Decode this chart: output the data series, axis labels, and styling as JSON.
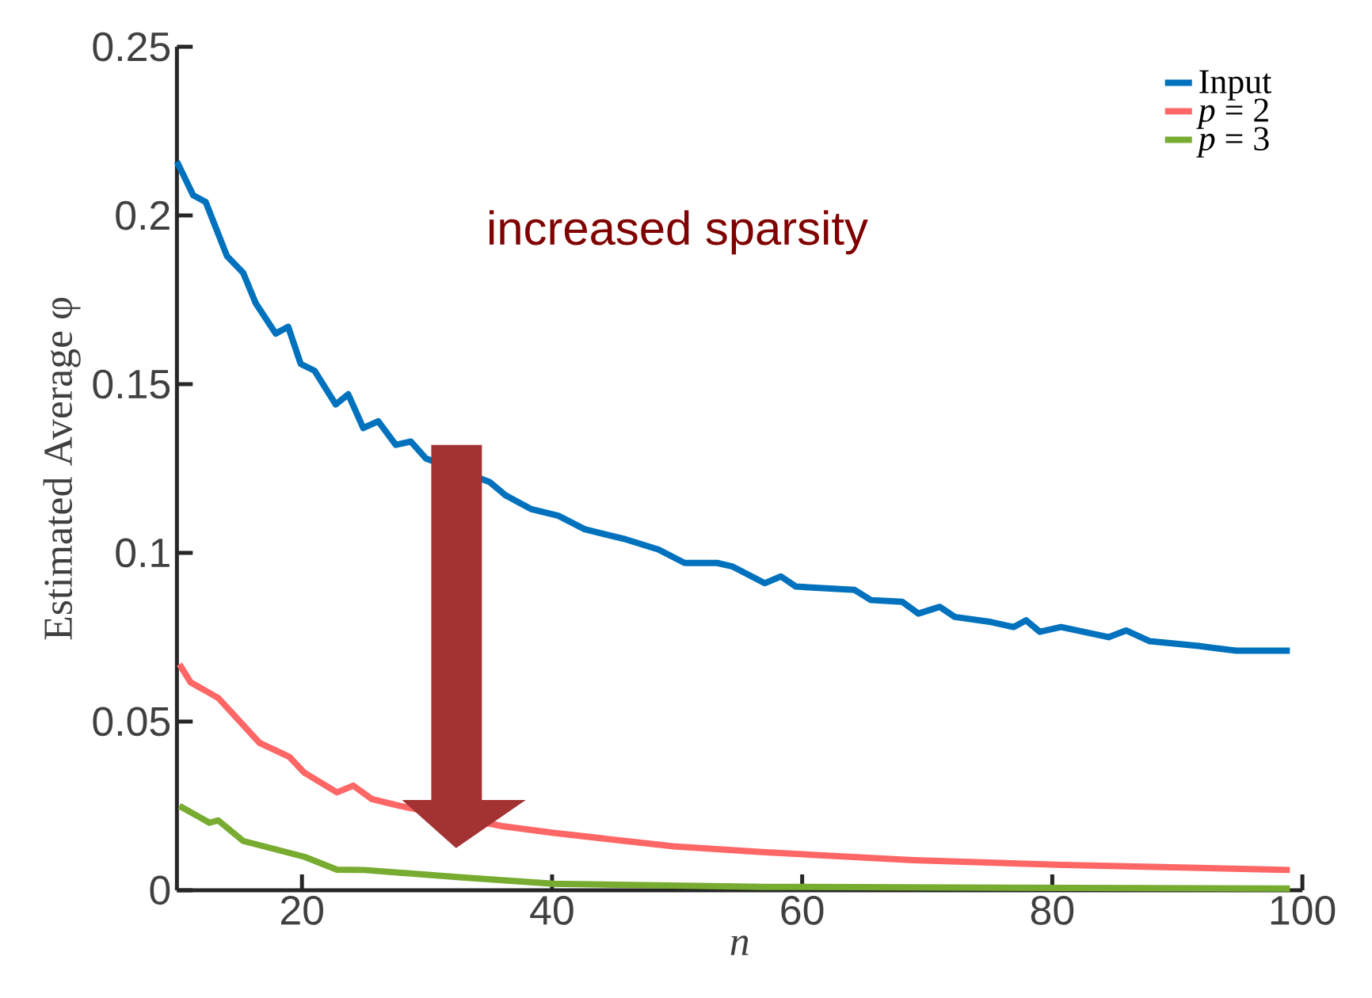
{
  "chart_data": {
    "type": "line",
    "xlabel": "n",
    "ylabel": "Estimated Average φ",
    "annotations": [
      "increased sparsity"
    ],
    "xlim": [
      10,
      100
    ],
    "ylim": [
      0,
      0.25
    ],
    "xticks": [
      20,
      40,
      60,
      80,
      100
    ],
    "yticks": [
      0,
      0.05,
      0.1,
      0.15,
      0.2,
      0.25
    ],
    "grid": false,
    "legend": "top right",
    "marker": "none",
    "line_style": "solid",
    "series": [
      {
        "name": "Input",
        "color": "#0072bd",
        "x": [
          10,
          11.3,
          12.3,
          14,
          15.3,
          16.3,
          17.9,
          18.9,
          19.9,
          21,
          22.7,
          23.7,
          24.9,
          26.1,
          27.5,
          28.7,
          29.9,
          35,
          36.3,
          38.3,
          40.5,
          42.6,
          45.9,
          48.5,
          50.6,
          53.2,
          54.4,
          57,
          58.3,
          59.5,
          64.2,
          65.5,
          68,
          69.3,
          71,
          72.2,
          75.1,
          76.9,
          77.9,
          79,
          80.7,
          84.5,
          85.9,
          87.8,
          91.7,
          94.7,
          97.4,
          99
        ],
        "values": [
          0.216,
          0.206,
          0.204,
          0.188,
          0.183,
          0.174,
          0.165,
          0.167,
          0.156,
          0.154,
          0.144,
          0.147,
          0.137,
          0.139,
          0.132,
          0.133,
          0.128,
          0.121,
          0.117,
          0.113,
          0.111,
          0.107,
          0.104,
          0.101,
          0.097,
          0.097,
          0.096,
          0.091,
          0.093,
          0.09,
          0.089,
          0.086,
          0.0855,
          0.082,
          0.084,
          0.081,
          0.0795,
          0.078,
          0.08,
          0.0766,
          0.078,
          0.075,
          0.077,
          0.0738,
          0.0724,
          0.071,
          0.071,
          0.071
        ]
      },
      {
        "name": "*p* = 2",
        "color": "#ff6666",
        "x": [
          10.2,
          11.1,
          13.3,
          16.6,
          19,
          20.2,
          22.8,
          24.1,
          25.6,
          27.8,
          36,
          40.1,
          49.7,
          56.8,
          68.9,
          80.9,
          97.9,
          99
        ],
        "values": [
          0.067,
          0.0616,
          0.057,
          0.0437,
          0.0395,
          0.0348,
          0.029,
          0.031,
          0.027,
          0.025,
          0.019,
          0.017,
          0.013,
          0.0113,
          0.0089,
          0.0075,
          0.0061,
          0.006
        ]
      },
      {
        "name": "*p* = 3",
        "color": "#77ac30",
        "x": [
          10.2,
          12.6,
          13.3,
          15.3,
          20.2,
          22.8,
          25,
          32.8,
          40.1,
          57,
          98,
          99
        ],
        "values": [
          0.025,
          0.02,
          0.0207,
          0.0146,
          0.0099,
          0.0061,
          0.006,
          0.0038,
          0.0019,
          0.001,
          0.0005,
          0.0005
        ]
      }
    ]
  }
}
